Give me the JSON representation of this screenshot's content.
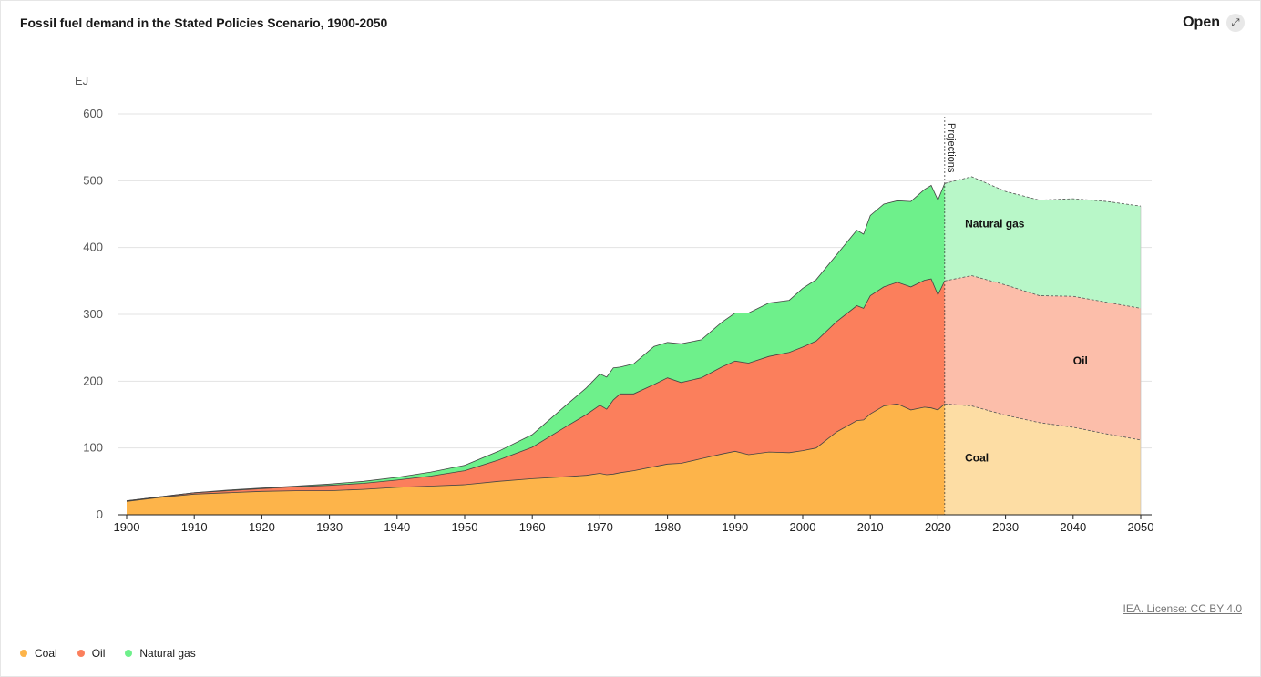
{
  "header": {
    "title": "Fossil fuel demand in the Stated Policies Scenario, 1900-2050",
    "open_label": "Open",
    "open_icon": "expand-arrow-icon"
  },
  "footer": {
    "license": "IEA. License: CC BY 4.0"
  },
  "legend": [
    {
      "name": "Coal",
      "color": "#fdb44a"
    },
    {
      "name": "Oil",
      "color": "#fb7f5c"
    },
    {
      "name": "Natural gas",
      "color": "#6ef08b"
    }
  ],
  "chart_data": {
    "type": "area",
    "stacked": true,
    "title": "Fossil fuel demand in the Stated Policies Scenario, 1900-2050",
    "ylabel": "EJ",
    "xlabel": "",
    "ylim": [
      0,
      600
    ],
    "xlim": [
      1900,
      2050
    ],
    "yticks": [
      0,
      100,
      200,
      300,
      400,
      500,
      600
    ],
    "xticks": [
      1900,
      1910,
      1920,
      1930,
      1940,
      1950,
      1960,
      1970,
      1980,
      1990,
      2000,
      2010,
      2020,
      2030,
      2040,
      2050
    ],
    "projection_start": 2021,
    "projection_label": "Projections",
    "series_labels": [
      {
        "name": "Natural gas",
        "x": 2024,
        "y": 430
      },
      {
        "name": "Oil",
        "x": 2040,
        "y": 225
      },
      {
        "name": "Coal",
        "x": 2024,
        "y": 80
      }
    ],
    "x": [
      1900,
      1905,
      1910,
      1915,
      1920,
      1925,
      1930,
      1935,
      1940,
      1945,
      1950,
      1955,
      1960,
      1965,
      1968,
      1970,
      1971,
      1972,
      1973,
      1975,
      1978,
      1980,
      1982,
      1985,
      1988,
      1990,
      1992,
      1995,
      1998,
      2000,
      2002,
      2005,
      2008,
      2009,
      2010,
      2012,
      2014,
      2016,
      2018,
      2019,
      2020,
      2021,
      2025,
      2030,
      2035,
      2040,
      2045,
      2050
    ],
    "series": [
      {
        "name": "Coal",
        "values": [
          20,
          26,
          31,
          33,
          35,
          36,
          36,
          38,
          41,
          43,
          45,
          50,
          54,
          57,
          59,
          62,
          60,
          61,
          63,
          66,
          72,
          76,
          77,
          84,
          91,
          95,
          90,
          94,
          93,
          96,
          100,
          124,
          141,
          142,
          151,
          163,
          166,
          157,
          161,
          160,
          157,
          166,
          163,
          149,
          138,
          131,
          121,
          112
        ]
      },
      {
        "name": "Oil",
        "values": [
          1,
          1,
          2,
          3,
          4,
          6,
          8,
          9,
          11,
          15,
          21,
          32,
          47,
          75,
          91,
          102,
          98,
          111,
          118,
          115,
          123,
          129,
          121,
          121,
          130,
          135,
          137,
          143,
          150,
          155,
          160,
          165,
          172,
          167,
          177,
          178,
          182,
          184,
          190,
          193,
          172,
          184,
          195,
          195,
          190,
          196,
          197,
          197
        ]
      },
      {
        "name": "Natural gas",
        "values": [
          0,
          0,
          0,
          1,
          1,
          1,
          2,
          3,
          4,
          6,
          8,
          13,
          19,
          32,
          40,
          47,
          48,
          48,
          40,
          45,
          57,
          53,
          58,
          57,
          67,
          72,
          75,
          80,
          78,
          88,
          92,
          100,
          113,
          111,
          120,
          124,
          122,
          128,
          136,
          140,
          142,
          146,
          148,
          140,
          143,
          146,
          151,
          153
        ]
      }
    ]
  }
}
